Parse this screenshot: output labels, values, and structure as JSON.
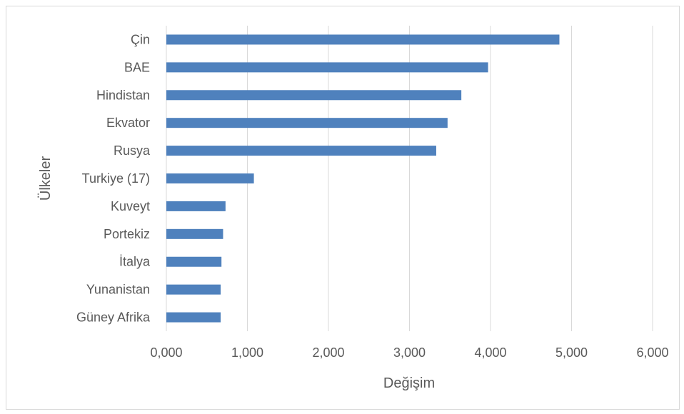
{
  "chart_data": {
    "type": "bar",
    "orientation": "horizontal",
    "categories": [
      "Çin",
      "BAE",
      "Hindistan",
      "Ekvator",
      "Rusya",
      "Turkiye (17)",
      "Kuveyt",
      "Portekiz",
      "İtalya",
      "Yunanistan",
      "Güney Afrika"
    ],
    "values": [
      4.85,
      3.97,
      3.64,
      3.47,
      3.33,
      1.08,
      0.73,
      0.7,
      0.68,
      0.67,
      0.67
    ],
    "series": [
      {
        "color": "#4f81bd",
        "values": [
          4.85,
          3.97,
          3.64,
          3.47,
          3.33,
          1.08,
          0.73,
          0.7,
          0.68,
          0.67,
          0.67
        ]
      }
    ],
    "xlabel": "Değişim",
    "ylabel": "Ülkeler",
    "xlim": [
      0,
      6
    ],
    "x_ticks": [
      "0,000",
      "1,000",
      "2,000",
      "3,000",
      "4,000",
      "5,000",
      "6,000"
    ],
    "grid": "vertical",
    "legend": "none"
  }
}
